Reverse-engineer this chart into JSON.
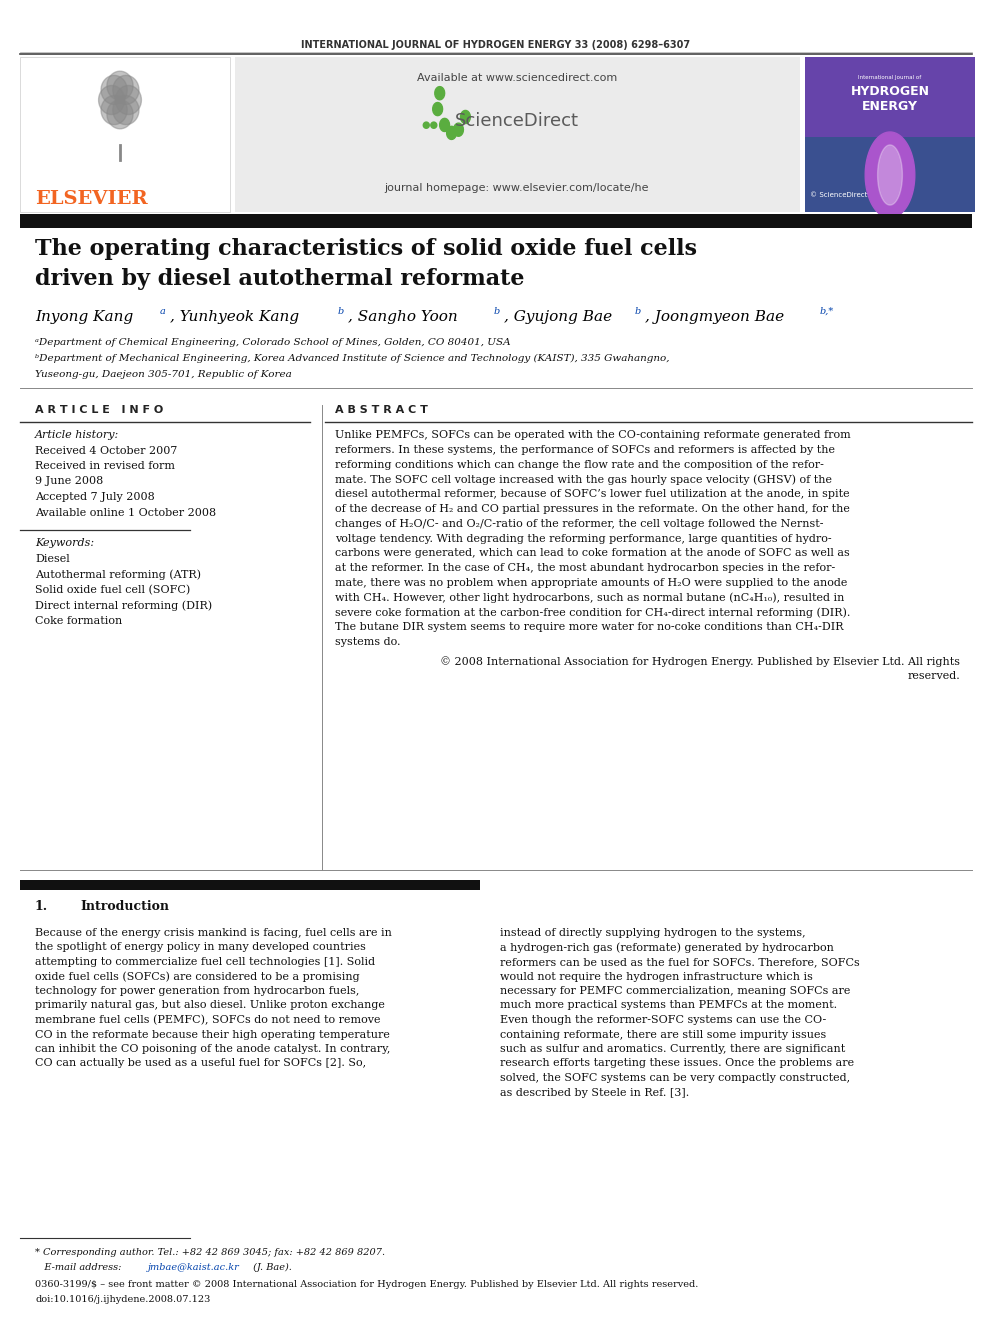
{
  "journal_header": "INTERNATIONAL JOURNAL OF HYDROGEN ENERGY 33 (2008) 6298–6307",
  "available_text": "Available at www.sciencedirect.com",
  "homepage_text": "journal homepage: www.elsevier.com/locate/he",
  "elsevier_text": "ELSEVIER",
  "sciencedirect_text": "ScienceDirect",
  "title_line1": "The operating characteristics of solid oxide fuel cells",
  "title_line2": "driven by diesel autothermal reformate",
  "affil_a": "ᵃDepartment of Chemical Engineering, Colorado School of Mines, Golden, CO 80401, USA",
  "affil_b": "ᵇDepartment of Mechanical Engineering, Korea Advanced Institute of Science and Technology (KAIST), 335 Gwahangno,",
  "affil_b2": "Yuseong-gu, Daejeon 305-701, Republic of Korea",
  "article_info_header": "A R T I C L E   I N F O",
  "abstract_header": "A B S T R A C T",
  "article_history_label": "Article history:",
  "received1": "Received 4 October 2007",
  "received_revised_label": "Received in revised form",
  "received2": "9 June 2008",
  "accepted": "Accepted 7 July 2008",
  "available_online": "Available online 1 October 2008",
  "keywords_label": "Keywords:",
  "keyword1": "Diesel",
  "keyword2": "Autothermal reforming (ATR)",
  "keyword3": "Solid oxide fuel cell (SOFC)",
  "keyword4": "Direct internal reforming (DIR)",
  "keyword5": "Coke formation",
  "abstract_lines": [
    "Unlike PEMFCs, SOFCs can be operated with the CO-containing reformate generated from",
    "reformers. In these systems, the performance of SOFCs and reformers is affected by the",
    "reforming conditions which can change the flow rate and the composition of the refor-",
    "mate. The SOFC cell voltage increased with the gas hourly space velocity (GHSV) of the",
    "diesel autothermal reformer, because of SOFC’s lower fuel utilization at the anode, in spite",
    "of the decrease of H₂ and CO partial pressures in the reformate. On the other hand, for the",
    "changes of H₂O/C- and O₂/C-ratio of the reformer, the cell voltage followed the Nernst-",
    "voltage tendency. With degrading the reforming performance, large quantities of hydro-",
    "carbons were generated, which can lead to coke formation at the anode of SOFC as well as",
    "at the reformer. In the case of CH₄, the most abundant hydrocarbon species in the refor-",
    "mate, there was no problem when appropriate amounts of H₂O were supplied to the anode",
    "with CH₄. However, other light hydrocarbons, such as normal butane (nC₄H₁₀), resulted in",
    "severe coke formation at the carbon-free condition for CH₄-direct internal reforming (DIR).",
    "The butane DIR system seems to require more water for no-coke conditions than CH₄-DIR",
    "systems do."
  ],
  "copyright_line1": "© 2008 International Association for Hydrogen Energy. Published by Elsevier Ltd. All rights",
  "copyright_line2": "reserved.",
  "section1_num": "1.",
  "section1_title": "Introduction",
  "intro_left_lines": [
    "Because of the energy crisis mankind is facing, fuel cells are in",
    "the spotlight of energy policy in many developed countries",
    "attempting to commercialize fuel cell technologies [1]. Solid",
    "oxide fuel cells (SOFCs) are considered to be a promising",
    "technology for power generation from hydrocarbon fuels,",
    "primarily natural gas, but also diesel. Unlike proton exchange",
    "membrane fuel cells (PEMFC), SOFCs do not need to remove",
    "CO in the reformate because their high operating temperature",
    "can inhibit the CO poisoning of the anode catalyst. In contrary,",
    "CO can actually be used as a useful fuel for SOFCs [2]. So,"
  ],
  "intro_right_lines": [
    "instead of directly supplying hydrogen to the systems,",
    "a hydrogen-rich gas (reformate) generated by hydrocarbon",
    "reformers can be used as the fuel for SOFCs. Therefore, SOFCs",
    "would not require the hydrogen infrastructure which is",
    "necessary for PEMFC commercialization, meaning SOFCs are",
    "much more practical systems than PEMFCs at the moment.",
    "Even though the reformer-SOFC systems can use the CO-",
    "containing reformate, there are still some impurity issues",
    "such as sulfur and aromatics. Currently, there are significant",
    "research efforts targeting these issues. Once the problems are",
    "solved, the SOFC systems can be very compactly constructed,",
    "as described by Steele in Ref. [3]."
  ],
  "footnote_star": "* Corresponding author. Tel.: +82 42 869 3045; fax: +82 42 869 8207.",
  "footnote_email_label": "   E-mail address: ",
  "footnote_email": "jmbae@kaist.ac.kr",
  "footnote_email_end": " (J. Bae).",
  "footnote_issn": "0360-3199/$ – see front matter © 2008 International Association for Hydrogen Energy. Published by Elsevier Ltd. All rights reserved.",
  "footnote_doi": "doi:10.1016/j.ijhydene.2008.07.123",
  "bg_color": "#ffffff",
  "elsevier_orange": "#f26522",
  "sd_green": "#5aad3f",
  "sd_text_color": "#5a5a5a",
  "link_color": "#0645ad",
  "text_color": "#000000",
  "gray_text": "#555555",
  "header_gray_bg": "#ebebeb"
}
